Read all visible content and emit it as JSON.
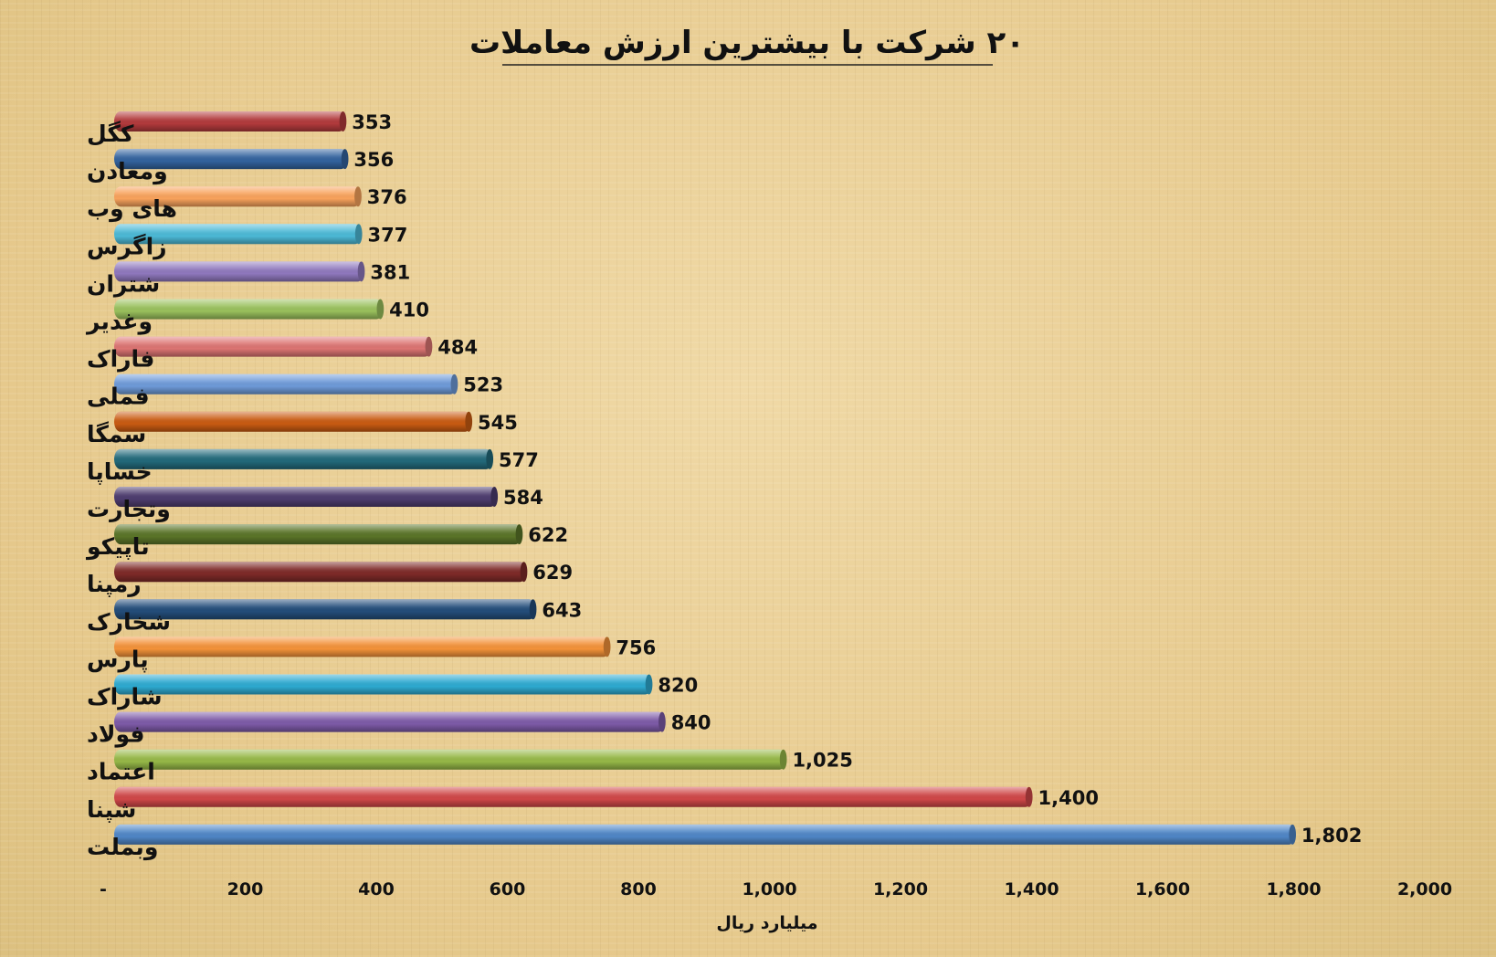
{
  "chart_data": {
    "type": "bar",
    "orientation": "horizontal",
    "title": "۲۰ شرکت با بیشترین ارزش معاملات",
    "xlabel": "میلیارد ریال",
    "ylabel": "",
    "xlim": [
      0,
      2000
    ],
    "x_ticks": [
      0,
      200,
      400,
      600,
      800,
      1000,
      1200,
      1400,
      1600,
      1800,
      2000
    ],
    "x_tick_labels": [
      "-",
      "200",
      "400",
      "600",
      "800",
      "1,000",
      "1,200",
      "1,400",
      "1,600",
      "1,800",
      "2,000"
    ],
    "grid": false,
    "legend": "none",
    "categories": [
      "کگل",
      "ومعادن",
      "های وب",
      "زاگرس",
      "شتران",
      "وغدیر",
      "فاراک",
      "فملی",
      "سمگا",
      "خساپا",
      "وتجارت",
      "تاپیکو",
      "رمپنا",
      "شخارک",
      "پارس",
      "شاراک",
      "فولاد",
      "اعتماد",
      "شپنا",
      "وبملت"
    ],
    "values": [
      353,
      356,
      376,
      377,
      381,
      410,
      484,
      523,
      545,
      577,
      584,
      622,
      629,
      643,
      756,
      820,
      840,
      1025,
      1400,
      1802
    ],
    "value_labels": [
      "353",
      "356",
      "376",
      "377",
      "381",
      "410",
      "484",
      "523",
      "545",
      "577",
      "584",
      "622",
      "629",
      "643",
      "756",
      "820",
      "840",
      "1,025",
      "1,400",
      "1,802"
    ],
    "colors": [
      "#b23a3c",
      "#33639e",
      "#f8a25c",
      "#4cb9d6",
      "#8f78bd",
      "#99c05c",
      "#dc7472",
      "#6e9ad8",
      "#c95b12",
      "#22697a",
      "#4d3c6e",
      "#5a7428",
      "#7e2a28",
      "#234d7a",
      "#f39239",
      "#2eaad0",
      "#7d5aa7",
      "#96b847",
      "#cf4748",
      "#4f86c6"
    ]
  }
}
